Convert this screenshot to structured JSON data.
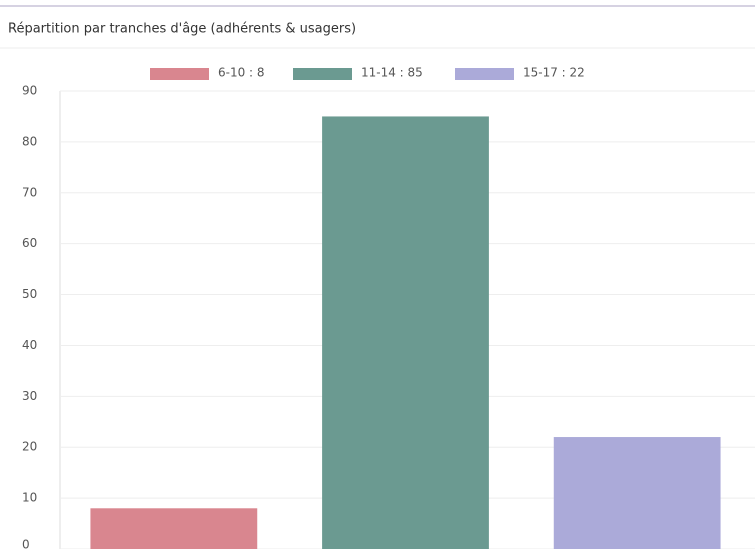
{
  "chart_data": {
    "type": "bar",
    "title": "Répartition par tranches d'âge (adhérents & usagers)",
    "series": [
      {
        "name": "6-10 : 8",
        "color": "#d9868f",
        "values": [
          8
        ]
      },
      {
        "name": "11-14 : 85",
        "color": "#6b9a91",
        "values": [
          85
        ]
      },
      {
        "name": "15-17 : 22",
        "color": "#abaad9",
        "values": [
          22
        ]
      }
    ],
    "ylim": [
      0,
      90
    ],
    "yticks": [
      0,
      10,
      20,
      30,
      40,
      50,
      60,
      70,
      80,
      90
    ],
    "grid": true,
    "legend": "top"
  }
}
